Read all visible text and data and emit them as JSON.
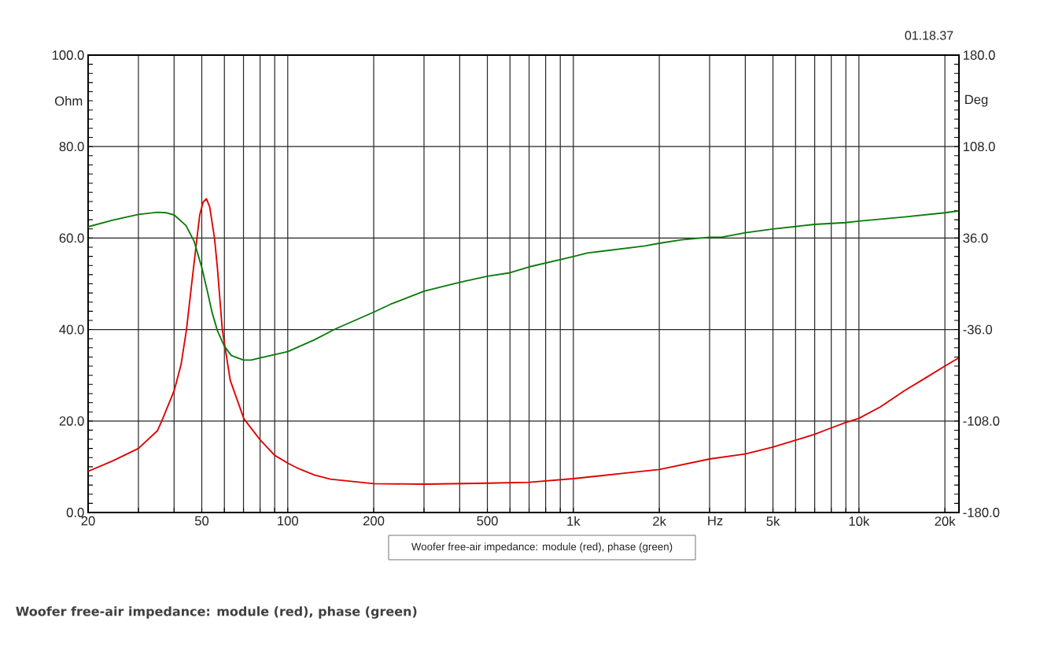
{
  "chart_data": {
    "type": "line",
    "title": "Woofer free-air impedance: module (red), phase (green)",
    "xlabel": "Hz",
    "ylabel": "Ohm",
    "y2label": "Deg",
    "annotations": [
      "01.18.37",
      "Woofer free-air impedance: module (red), phase (green)"
    ],
    "log": "x",
    "grid": true,
    "xlim": [
      20,
      22400
    ],
    "xticks": [
      20,
      {
        "value": 30,
        "label": null
      },
      {
        "value": 40,
        "label": null
      },
      50,
      {
        "value": 60,
        "label": null
      },
      {
        "value": 70,
        "label": null
      },
      {
        "value": 80,
        "label": null
      },
      {
        "value": 90,
        "label": null
      },
      100,
      200,
      {
        "value": 300,
        "label": null
      },
      {
        "value": 400,
        "label": null
      },
      500,
      {
        "value": 600,
        "label": null
      },
      {
        "value": 700,
        "label": null
      },
      {
        "value": 800,
        "label": null
      },
      {
        "value": 900,
        "label": null
      },
      {
        "value": 1000,
        "label": "1k"
      },
      {
        "value": 2000,
        "label": "2k"
      },
      {
        "value": 3000,
        "label": null
      },
      {
        "value": 4000,
        "label": null
      },
      {
        "value": 5000,
        "label": "5k"
      },
      {
        "value": 6000,
        "label": null
      },
      {
        "value": 7000,
        "label": null
      },
      {
        "value": 8000,
        "label": null
      },
      {
        "value": 9000,
        "label": null
      },
      {
        "value": 10000,
        "label": "10k"
      },
      {
        "value": 20000,
        "label": "20k"
      }
    ],
    "ylim": [
      0,
      100
    ],
    "yticks": [
      {
        "value": 0,
        "label": "0.0"
      },
      {
        "value": 20,
        "label": "20.0"
      },
      {
        "value": 40,
        "label": "40.0"
      },
      {
        "value": 60,
        "label": "60.0"
      },
      {
        "value": 80,
        "label": "80.0"
      },
      {
        "value": 100,
        "label": "100.0"
      }
    ],
    "y2lim": [
      -180,
      180
    ],
    "y2ticks": [
      {
        "value": -180,
        "label": "-180.0"
      },
      {
        "value": -108,
        "label": "-108.0"
      },
      {
        "value": -36,
        "label": "-36.0"
      },
      {
        "value": 36,
        "label": "36.0"
      },
      {
        "value": 108,
        "label": "108.0"
      },
      {
        "value": 180,
        "label": "180.0"
      }
    ],
    "series": [
      {
        "color": "#e00000",
        "x": [
          20,
          24.4,
          30,
          35,
          36.2,
          40,
          42.3,
          44.2,
          46,
          48.1,
          49.2,
          50.5,
          51.9,
          53.3,
          55.4,
          56.7,
          59,
          62.9,
          70.2,
          80,
          90,
          100,
          109,
          124,
          141,
          200,
          300,
          500,
          700,
          1000,
          1570,
          2000,
          3000,
          4000,
          5000,
          6000,
          7000,
          8000,
          9000,
          10000,
          11900,
          14400,
          17100,
          20000,
          22200
        ],
        "values": [
          9.0,
          11.3,
          14.0,
          17.9,
          20.0,
          26.6,
          32.3,
          40.0,
          49.5,
          60.0,
          65.1,
          67.8,
          68.6,
          66.8,
          60.0,
          53.6,
          40.0,
          28.9,
          20.5,
          15.9,
          12.5,
          10.8,
          9.6,
          8.2,
          7.3,
          6.3,
          6.2,
          6.4,
          6.6,
          7.4,
          8.7,
          9.4,
          11.7,
          12.8,
          14.3,
          15.8,
          17.1,
          18.5,
          19.7,
          20.6,
          23.1,
          26.6,
          29.4,
          32.0,
          33.7
        ]
      },
      {
        "color": "#0b7a0b",
        "axis": "y2",
        "x": [
          20,
          24.4,
          30,
          35,
          37.6,
          40,
          44,
          47,
          50,
          52.3,
          54.3,
          56.7,
          60,
          63.5,
          70,
          74.4,
          80,
          100,
          124,
          146,
          200,
          229,
          300,
          400,
          500,
          600,
          700,
          1000,
          1119,
          1781,
          2000,
          2390,
          3000,
          3300,
          4000,
          5000,
          7000,
          9000,
          10000,
          14400,
          20000,
          22200
        ],
        "values": [
          44.9,
          50.1,
          54.6,
          56.3,
          55.9,
          54.2,
          45.9,
          33.5,
          12.9,
          -5.8,
          -22.3,
          -36.8,
          -49.2,
          -56.5,
          -60.0,
          -60.0,
          -58.3,
          -53.4,
          -44.1,
          -35.8,
          -22.3,
          -16.1,
          -5.8,
          1.1,
          6.0,
          8.7,
          13.3,
          21.5,
          24.2,
          29.8,
          31.9,
          34.6,
          36.6,
          36.6,
          40.2,
          43.1,
          46.8,
          48.2,
          49.3,
          52.6,
          55.9,
          57.3
        ]
      }
    ]
  }
}
